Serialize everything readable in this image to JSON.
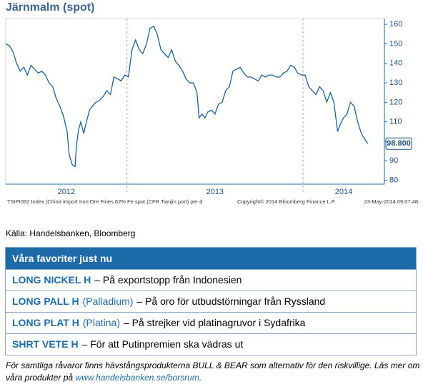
{
  "chart_data": {
    "type": "line",
    "title": "Järnmalm (spot)",
    "x": [
      2012.311,
      2012.332,
      2012.352,
      2012.373,
      2012.393,
      2012.414,
      2012.434,
      2012.455,
      2012.475,
      2012.496,
      2012.516,
      2012.537,
      2012.557,
      2012.578,
      2012.598,
      2012.619,
      2012.639,
      2012.66,
      2012.672,
      2012.689,
      2012.705,
      2012.713,
      2012.725,
      2012.738,
      2012.754,
      2012.77,
      2012.787,
      2012.803,
      2012.824,
      2012.844,
      2012.865,
      2012.885,
      2012.906,
      2012.926,
      2012.947,
      2012.967,
      2012.988,
      2013.008,
      2013.029,
      2013.049,
      2013.07,
      2013.09,
      2013.111,
      2013.131,
      2013.152,
      2013.172,
      2013.193,
      2013.213,
      2013.234,
      2013.254,
      2013.275,
      2013.295,
      2013.316,
      2013.336,
      2013.357,
      2013.377,
      2013.398,
      2013.41,
      2013.426,
      2013.443,
      2013.459,
      2013.48,
      2013.5,
      2013.52,
      2013.541,
      2013.561,
      2013.582,
      2013.602,
      2013.623,
      2013.643,
      2013.664,
      2013.684,
      2013.705,
      2013.725,
      2013.746,
      2013.766,
      2013.787,
      2013.807,
      2013.828,
      2013.848,
      2013.869,
      2013.889,
      2013.91,
      2013.93,
      2013.951,
      2013.971,
      2013.992,
      2014.012,
      2014.033,
      2014.053,
      2014.074,
      2014.094,
      2014.115,
      2014.135,
      2014.156,
      2014.176,
      2014.197,
      2014.209,
      2014.23,
      2014.25,
      2014.27,
      2014.291,
      2014.311,
      2014.332,
      2014.352,
      2014.369
    ],
    "values": [
      150,
      149,
      146,
      140,
      136,
      138,
      134,
      139,
      137,
      135,
      136,
      134,
      130,
      128,
      122,
      118,
      113,
      105,
      93,
      88,
      87,
      98,
      106,
      110,
      104,
      110,
      116,
      118,
      120,
      121,
      123,
      126,
      124,
      133,
      132,
      131,
      134,
      133,
      147,
      152,
      147,
      145,
      150,
      158,
      159,
      155,
      147,
      145,
      143,
      147,
      141,
      139,
      136,
      132,
      130,
      130,
      125,
      112,
      114,
      112,
      115,
      116,
      114,
      119,
      120,
      126,
      128,
      136,
      137,
      138,
      135,
      133,
      133,
      132,
      131,
      134,
      133,
      134,
      134,
      133,
      133,
      135,
      136,
      139,
      138,
      135,
      134,
      134,
      128,
      126,
      124,
      128,
      126,
      120,
      125,
      120,
      105,
      108,
      112,
      114,
      120,
      118,
      110,
      104,
      101,
      98.8
    ],
    "value_labels": [
      null,
      null,
      null,
      null,
      null,
      null,
      null,
      null,
      null,
      null,
      null,
      null,
      null,
      null,
      null,
      null,
      null,
      null,
      null,
      null,
      null,
      null,
      null,
      null,
      null,
      null,
      null,
      null,
      null,
      null,
      null,
      null,
      null,
      null,
      null,
      null,
      null,
      null,
      null,
      null,
      null,
      null,
      null,
      null,
      null,
      null,
      null,
      null,
      null,
      null,
      null,
      null,
      null,
      null,
      null,
      null,
      null,
      null,
      null,
      null,
      null,
      null,
      null,
      null,
      null,
      null,
      null,
      null,
      null,
      null,
      null,
      null,
      null,
      null,
      null,
      null,
      null,
      null,
      null,
      null,
      null,
      null,
      null,
      null,
      null,
      null,
      null,
      null,
      null,
      null,
      null,
      null,
      null,
      null,
      null,
      null,
      null,
      null,
      null,
      null,
      null,
      null,
      null,
      null,
      null,
      "98.800"
    ],
    "color": "#1f5f9c",
    "xlim": [
      2012.311,
      2014.463
    ],
    "xticks": [
      2012,
      2013,
      2014
    ],
    "ylim": [
      78,
      163
    ],
    "yticks": [
      80,
      90,
      100,
      110,
      120,
      130,
      140,
      150,
      160
    ],
    "source_note": "TSIPI062 Index (China import Iron Ore Fines 62% Fe spot (CFR Tianjin port) per d",
    "copyright": "Copyright© 2014 Bloomberg Finance L.P.",
    "timestamp": "23-May-2014 09:07:48"
  },
  "source": "Källa: Handelsbanken, Bloomberg",
  "table": {
    "header": "Våra favoriter just nu",
    "rows": [
      [
        {
          "text": "LONG NICKEL H",
          "style": "product"
        },
        {
          "text": "– På exportstopp från Indonesien",
          "style": "plain"
        }
      ],
      [
        {
          "text": "LONG PALL H",
          "style": "product"
        },
        {
          "text": "(Palladium)",
          "style": "paren"
        },
        {
          "text": "– På oro för utbudstörningar från Ryssland",
          "style": "plain"
        }
      ],
      [
        {
          "text": "LONG PLAT H",
          "style": "product"
        },
        {
          "text": "(Platina)",
          "style": "paren"
        },
        {
          "text": "– På strejker vid platinagruvor i Sydafrika",
          "style": "plain"
        }
      ],
      [
        {
          "text": "SHRT VETE H",
          "style": "product"
        },
        {
          "text": "– För att Putinpremien ska vädras ut",
          "style": "plain"
        }
      ]
    ]
  },
  "footer": {
    "text": "För samtliga råvaror finns hävstångsprodukterna BULL & BEAR som alternativ för den riskvillige. Läs mer om våra produkter på",
    "link": "www.handelsbanken.se/borsrum",
    "end": "."
  }
}
